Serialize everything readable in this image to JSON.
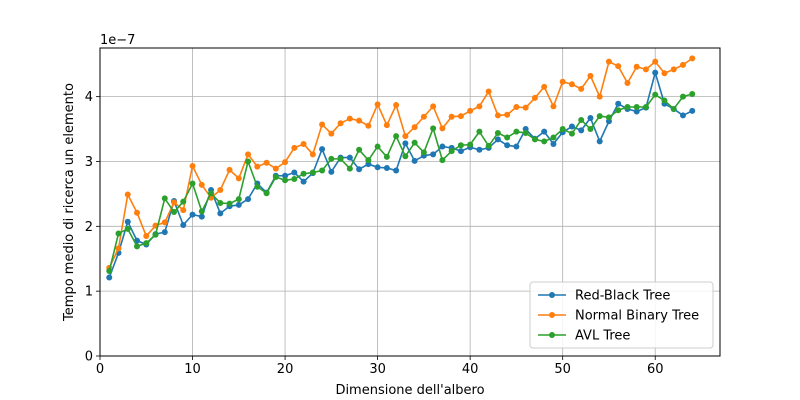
{
  "chart_data": {
    "type": "line",
    "xlabel": "Dimensione dell'albero",
    "ylabel": "Tempo medio di ricerca un elemento",
    "y_scale_label": "1e−7",
    "xlim": [
      0,
      67
    ],
    "ylim": [
      0,
      4.75
    ],
    "xticks": [
      0,
      10,
      20,
      30,
      40,
      50,
      60
    ],
    "yticks": [
      0,
      1,
      2,
      3,
      4
    ],
    "grid": true,
    "legend_position": "lower-right",
    "series": [
      {
        "name": "Red-Black Tree",
        "color": "#1f77b4",
        "marker": "circle",
        "values": [
          1.21,
          1.59,
          2.07,
          1.78,
          1.72,
          1.88,
          1.91,
          2.39,
          2.02,
          2.18,
          2.15,
          2.56,
          2.2,
          2.31,
          2.33,
          2.42,
          2.66,
          2.52,
          2.78,
          2.78,
          2.83,
          2.69,
          2.82,
          3.19,
          2.84,
          3.06,
          3.06,
          2.88,
          2.96,
          2.91,
          2.9,
          2.86,
          3.28,
          3.01,
          3.09,
          3.11,
          3.23,
          3.21,
          3.16,
          3.22,
          3.18,
          3.21,
          3.34,
          3.25,
          3.23,
          3.5,
          3.35,
          3.46,
          3.27,
          3.45,
          3.54,
          3.48,
          3.67,
          3.31,
          3.62,
          3.89,
          3.81,
          3.77,
          3.83,
          4.37,
          3.89,
          3.81,
          3.71,
          3.78
        ]
      },
      {
        "name": "Normal Binary Tree",
        "color": "#ff7f0e",
        "marker": "circle",
        "values": [
          1.36,
          1.66,
          2.49,
          2.21,
          1.85,
          2.01,
          2.06,
          2.37,
          2.25,
          2.93,
          2.64,
          2.44,
          2.56,
          2.87,
          2.74,
          3.11,
          2.92,
          2.98,
          2.89,
          2.99,
          3.21,
          3.27,
          3.11,
          3.57,
          3.43,
          3.59,
          3.66,
          3.63,
          3.55,
          3.88,
          3.56,
          3.87,
          3.39,
          3.53,
          3.69,
          3.85,
          3.51,
          3.69,
          3.7,
          3.78,
          3.85,
          4.08,
          3.71,
          3.72,
          3.84,
          3.83,
          3.98,
          4.15,
          3.85,
          4.23,
          4.19,
          4.12,
          4.32,
          4.0,
          4.54,
          4.47,
          4.21,
          4.46,
          4.42,
          4.54,
          4.36,
          4.42,
          4.49,
          4.59
        ]
      },
      {
        "name": "AVL Tree",
        "color": "#2ca02c",
        "marker": "circle",
        "values": [
          1.31,
          1.89,
          1.96,
          1.69,
          1.74,
          1.87,
          2.43,
          2.22,
          2.38,
          2.66,
          2.23,
          2.51,
          2.36,
          2.35,
          2.42,
          3.0,
          2.61,
          2.51,
          2.76,
          2.71,
          2.73,
          2.81,
          2.83,
          2.86,
          3.04,
          3.04,
          2.89,
          3.18,
          3.02,
          3.23,
          3.07,
          3.39,
          3.08,
          3.29,
          3.14,
          3.51,
          3.02,
          3.16,
          3.25,
          3.26,
          3.46,
          3.24,
          3.44,
          3.37,
          3.46,
          3.44,
          3.34,
          3.31,
          3.37,
          3.5,
          3.43,
          3.64,
          3.5,
          3.7,
          3.68,
          3.79,
          3.84,
          3.84,
          3.84,
          4.03,
          3.94,
          3.81,
          4.0,
          4.04
        ]
      }
    ]
  }
}
